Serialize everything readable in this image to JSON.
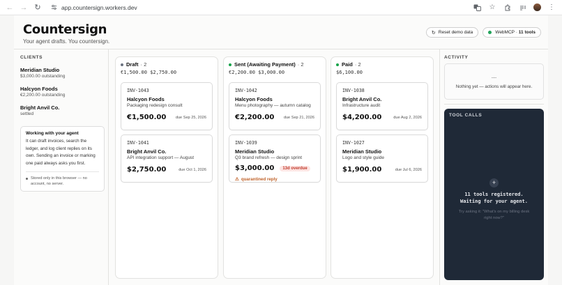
{
  "browser": {
    "url": "app.countersign.workers.dev",
    "icons": [
      "back-icon",
      "forward-icon",
      "reload-icon",
      "site-settings-icon",
      "translate-icon",
      "star-icon",
      "extensions-icon",
      "media-icon",
      "profile-avatar",
      "menu-icon"
    ]
  },
  "header": {
    "title": "Countersign",
    "subtitle": "Your agent drafts. You countersign.",
    "reset_label": "Reset demo data",
    "webmcp_label": "WebMCP",
    "tools_label": "11 tools"
  },
  "sidebar": {
    "clients_label": "CLIENTS",
    "clients": [
      {
        "name": "Meridian Studio",
        "status": "$3,000.00 outstanding"
      },
      {
        "name": "Halcyon Foods",
        "status": "€2,200.00 outstanding"
      },
      {
        "name": "Bright Anvil Co.",
        "status": "settled"
      }
    ],
    "agent_card": {
      "title": "Working with your agent",
      "body": "It can draft invoices, search the ledger, and log client replies on its own. Sending an invoice or marking one paid always asks you first.",
      "note": "Stored only in this browser — no account, no server."
    }
  },
  "columns": [
    {
      "title": "Draft",
      "count": "2",
      "dot_color": "#6b7280",
      "sum": "€1,500.00 $2,750.00",
      "cards": [
        {
          "id": "INV-1043",
          "client": "Halcyon Foods",
          "desc": "Packaging redesign consult",
          "amount": "€1,500.00",
          "due": "due Sep 25, 2026"
        },
        {
          "id": "INV-1041",
          "client": "Bright Anvil Co.",
          "desc": "API integration support — August",
          "amount": "$2,750.00",
          "due": "due Oct 1, 2026"
        }
      ]
    },
    {
      "title": "Sent (Awaiting Payment)",
      "count": "2",
      "dot_color": "#16a34a",
      "sum": "€2,200.00 $3,000.00",
      "cards": [
        {
          "id": "INV-1042",
          "client": "Halcyon Foods",
          "desc": "Menu photography — autumn catalog",
          "amount": "€2,200.00",
          "due": "due Sep 21, 2026"
        },
        {
          "id": "INV-1039",
          "client": "Meridian Studio",
          "desc": "Q3 brand refresh — design sprint",
          "amount": "$3,000.00",
          "overdue": "13d overdue",
          "quarantine": "quarantined reply"
        }
      ]
    },
    {
      "title": "Paid",
      "count": "2",
      "dot_color": "#16a34a",
      "sum": "$6,100.00",
      "cards": [
        {
          "id": "INV-1038",
          "client": "Bright Anvil Co.",
          "desc": "Infrastructure audit",
          "amount": "$4,200.00",
          "due": "due Aug 2, 2026"
        },
        {
          "id": "INV-1027",
          "client": "Meridian Studio",
          "desc": "Logo and style guide",
          "amount": "$1,900.00",
          "due": "due Jul 6, 2026"
        }
      ]
    }
  ],
  "activity": {
    "label": "ACTIVITY",
    "ellipsis": "...",
    "empty": "Nothing yet — actions will appear here."
  },
  "tool_calls": {
    "label": "TOOL CALLS",
    "plus": "+",
    "line1": "11 tools registered.",
    "line2": "Waiting for your agent.",
    "hint": "Try asking it: \"What's on my billing desk right now?\""
  }
}
